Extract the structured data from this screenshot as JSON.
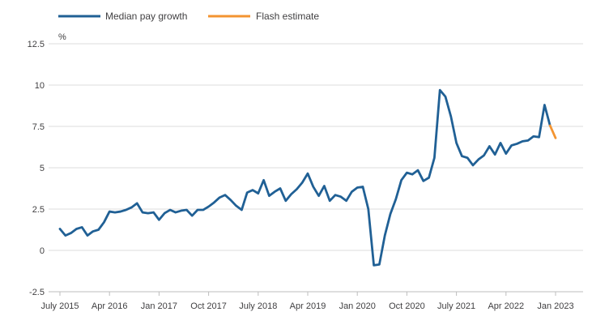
{
  "chart_data": {
    "type": "line",
    "title": "",
    "xlabel": "",
    "ylabel": "%",
    "ylim": [
      -2.5,
      12.5
    ],
    "yticks": [
      "12.5",
      "10",
      "7.5",
      "5",
      "2.5",
      "0",
      "-2.5"
    ],
    "xticks": [
      "July 2015",
      "Apr 2016",
      "Jan 2017",
      "Oct 2017",
      "July 2018",
      "Apr 2019",
      "Jan 2020",
      "Oct 2020",
      "July 2021",
      "Apr 2022",
      "Jan 2023"
    ],
    "grid": true,
    "legend_position": "top-left",
    "series": [
      {
        "name": "Median pay growth",
        "color": "#206095",
        "x": [
          "2015-07",
          "2015-08",
          "2015-09",
          "2015-10",
          "2015-11",
          "2015-12",
          "2016-01",
          "2016-02",
          "2016-03",
          "2016-04",
          "2016-05",
          "2016-06",
          "2016-07",
          "2016-08",
          "2016-09",
          "2016-10",
          "2016-11",
          "2016-12",
          "2017-01",
          "2017-02",
          "2017-03",
          "2017-04",
          "2017-05",
          "2017-06",
          "2017-07",
          "2017-08",
          "2017-09",
          "2017-10",
          "2017-11",
          "2017-12",
          "2018-01",
          "2018-02",
          "2018-03",
          "2018-04",
          "2018-05",
          "2018-06",
          "2018-07",
          "2018-08",
          "2018-09",
          "2018-10",
          "2018-11",
          "2018-12",
          "2019-01",
          "2019-02",
          "2019-03",
          "2019-04",
          "2019-05",
          "2019-06",
          "2019-07",
          "2019-08",
          "2019-09",
          "2019-10",
          "2019-11",
          "2019-12",
          "2020-01",
          "2020-02",
          "2020-03",
          "2020-04",
          "2020-05",
          "2020-06",
          "2020-07",
          "2020-08",
          "2020-09",
          "2020-10",
          "2020-11",
          "2020-12",
          "2021-01",
          "2021-02",
          "2021-03",
          "2021-04",
          "2021-05",
          "2021-06",
          "2021-07",
          "2021-08",
          "2021-09",
          "2021-10",
          "2021-11",
          "2021-12",
          "2022-01",
          "2022-02",
          "2022-03",
          "2022-04",
          "2022-05",
          "2022-06",
          "2022-07",
          "2022-08",
          "2022-09",
          "2022-10",
          "2022-11",
          "2022-12"
        ],
        "values": [
          1.3,
          0.9,
          1.05,
          1.3,
          1.4,
          0.9,
          1.15,
          1.25,
          1.7,
          2.35,
          2.3,
          2.35,
          2.45,
          2.6,
          2.85,
          2.3,
          2.25,
          2.3,
          1.85,
          2.25,
          2.45,
          2.3,
          2.4,
          2.45,
          2.1,
          2.45,
          2.45,
          2.65,
          2.9,
          3.2,
          3.35,
          3.05,
          2.7,
          2.45,
          3.5,
          3.65,
          3.45,
          4.25,
          3.3,
          3.55,
          3.75,
          3.0,
          3.4,
          3.7,
          4.1,
          4.65,
          3.85,
          3.3,
          3.9,
          3.0,
          3.35,
          3.25,
          3.0,
          3.55,
          3.8,
          3.85,
          2.5,
          -0.9,
          -0.85,
          0.9,
          2.2,
          3.1,
          4.25,
          4.7,
          4.6,
          4.85,
          4.2,
          4.4,
          5.6,
          9.7,
          9.3,
          8.1,
          6.5,
          5.7,
          5.6,
          5.15,
          5.5,
          5.75,
          6.3,
          5.8,
          6.5,
          5.85,
          6.35,
          6.45,
          6.6,
          6.65,
          6.9,
          6.85,
          8.8,
          7.55
        ]
      },
      {
        "name": "Flash estimate",
        "color": "#f39431",
        "x": [
          "2022-12",
          "2023-01"
        ],
        "values": [
          7.55,
          6.8
        ]
      }
    ]
  }
}
